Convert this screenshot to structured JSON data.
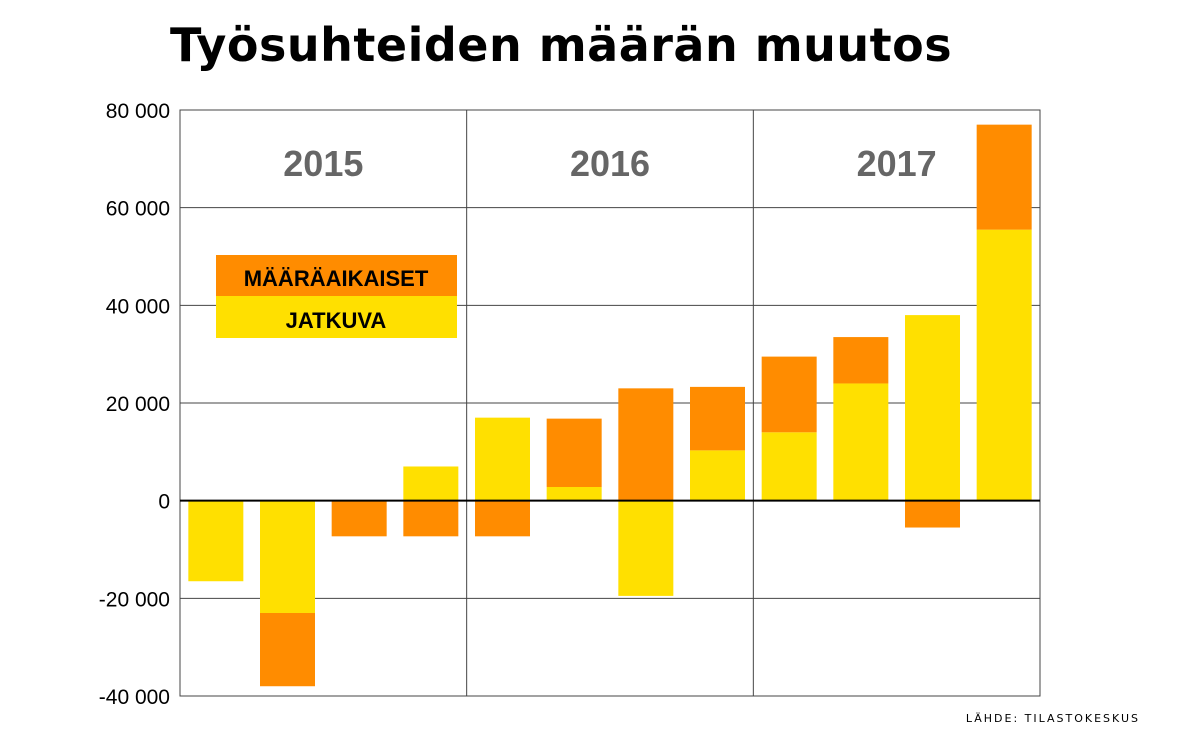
{
  "chart_data": {
    "type": "bar",
    "stacked": true,
    "title": "Työsuhteiden määrän muutos",
    "source": "LÄHDE: TILASTOKESKUS",
    "ylim": [
      -40000,
      80000
    ],
    "yticks": [
      -40000,
      -20000,
      0,
      20000,
      40000,
      60000,
      80000
    ],
    "ytick_labels": [
      "-40 000",
      "-20 000",
      "0",
      "20 000",
      "40 000",
      "60 000",
      "80 000"
    ],
    "grid": true,
    "year_groups": [
      {
        "label": "2015",
        "start": 0,
        "count": 4
      },
      {
        "label": "2016",
        "start": 4,
        "count": 4
      },
      {
        "label": "2017",
        "start": 8,
        "count": 4
      }
    ],
    "legend": {
      "placement": "top-left",
      "entries": [
        "MÄÄRÄAIKAISET",
        "JATKUVA"
      ]
    },
    "series": [
      {
        "name": "JATKUVA",
        "color": "#FFE000",
        "values": [
          -16500,
          -23000,
          0,
          7000,
          17000,
          2800,
          -19500,
          10300,
          14000,
          24000,
          38000,
          55500
        ]
      },
      {
        "name": "MÄÄRÄAIKAISET",
        "color": "#FF8C00",
        "values": [
          0,
          -15000,
          -7300,
          -7300,
          -7300,
          14000,
          23000,
          13000,
          15500,
          9500,
          -5500,
          21500
        ]
      }
    ],
    "colors": {
      "jatkuva": "#FFE000",
      "maaraaikaiset": "#FF8C00",
      "grid": "#444444",
      "year_label": "#666666"
    }
  }
}
